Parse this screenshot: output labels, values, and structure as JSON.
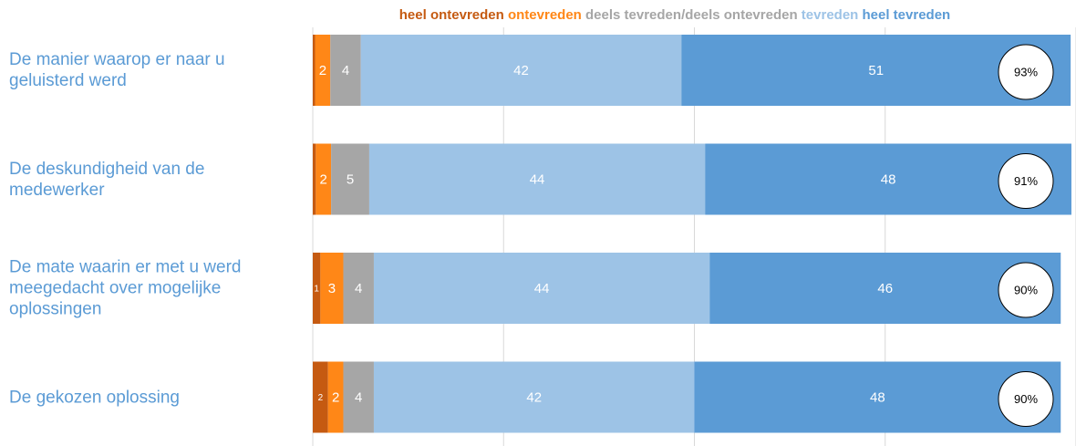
{
  "chart_data": {
    "type": "stacked-bar-horizontal",
    "categories": [
      "De manier waarop er naar u geluisterd werd",
      "De deskundigheid van de medewerker",
      "De mate waarin er met u werd meegedacht over mogelijke oplossingen",
      "De gekozen oplossing"
    ],
    "series": [
      {
        "name": "heel ontevreden",
        "color": "#c55a11",
        "values": [
          0.3,
          0.4,
          1,
          2
        ],
        "value_labels": [
          null,
          null,
          "1",
          "2"
        ]
      },
      {
        "name": "ontevreden",
        "color": "#ff8717",
        "values": [
          2,
          2,
          3,
          2
        ]
      },
      {
        "name": "deels tevreden/deels ontevreden",
        "color": "#a6a6a6",
        "values": [
          4,
          5,
          4,
          4
        ]
      },
      {
        "name": "tevreden",
        "color": "#9dc3e6",
        "values": [
          42,
          44,
          44,
          42
        ]
      },
      {
        "name": "heel tevreden",
        "color": "#5b9bd5",
        "values": [
          51,
          48,
          46,
          48
        ]
      }
    ],
    "totals": [
      {
        "value": 93,
        "label": "93%"
      },
      {
        "value": 91,
        "label": "91%"
      },
      {
        "value": 90,
        "label": "90%"
      },
      {
        "value": 90,
        "label": "90%"
      }
    ],
    "xlim": [
      0,
      100
    ],
    "xticks": [
      0,
      25,
      50,
      75,
      100
    ],
    "grid": true,
    "legend": "top"
  }
}
